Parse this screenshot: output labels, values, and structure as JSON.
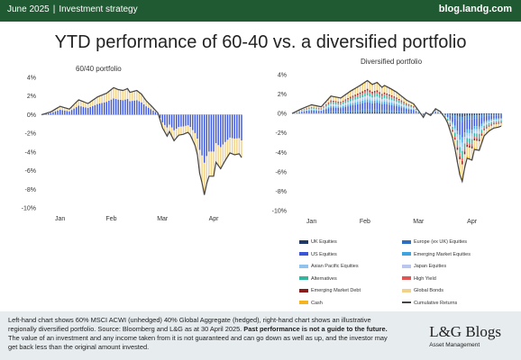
{
  "header": {
    "left": "June 2025",
    "separator": "|",
    "section": "Investment strategy",
    "site": "blog.landg.com"
  },
  "title": "YTD performance of 60-40 vs. a diversified portfolio",
  "colors": {
    "header_bg": "#1f5a32",
    "footer_bg": "#e7ecef"
  },
  "legend": [
    {
      "label": "UK Equities",
      "color": "#1f3a66",
      "type": "bar"
    },
    {
      "label": "Europe (ex UK) Equities",
      "color": "#2f6fc0",
      "type": "bar"
    },
    {
      "label": "US Equities",
      "color": "#3b55d8",
      "type": "bar"
    },
    {
      "label": "Emerging Market Equities",
      "color": "#3fa3e0",
      "type": "bar"
    },
    {
      "label": "Asian Pacific Equities",
      "color": "#8fc3ee",
      "type": "bar"
    },
    {
      "label": "Japan Equities",
      "color": "#b9c7ee",
      "type": "bar"
    },
    {
      "label": "Alternatives",
      "color": "#33b5a0",
      "type": "bar"
    },
    {
      "label": "High Yield",
      "color": "#e05555",
      "type": "bar"
    },
    {
      "label": "Emerging Market Debt",
      "color": "#8a1c1c",
      "type": "bar"
    },
    {
      "label": "Global Bonds",
      "color": "#f0d28a",
      "type": "bar"
    },
    {
      "label": "Cash",
      "color": "#f5b41e",
      "type": "bar"
    },
    {
      "label": "Cumulative Returns",
      "color": "#444444",
      "type": "line"
    }
  ],
  "chart_data": [
    {
      "type": "bar",
      "title": "60/40 portfolio",
      "x": [
        "Jan",
        "Feb",
        "Mar",
        "Apr"
      ],
      "ylim": [
        -10,
        4
      ],
      "yticks": [
        "4%",
        "2%",
        "0%",
        "-2%",
        "-4%",
        "-6%",
        "-8%",
        "-10%"
      ],
      "knots": [
        [
          0,
          0
        ],
        [
          4,
          0.3
        ],
        [
          8,
          0.9
        ],
        [
          12,
          0.6
        ],
        [
          16,
          1.6
        ],
        [
          20,
          1.2
        ],
        [
          24,
          1.9
        ],
        [
          28,
          2.3
        ],
        [
          31,
          2.9
        ],
        [
          33,
          2.7
        ],
        [
          35,
          2.6
        ],
        [
          37,
          2.8
        ],
        [
          38,
          2.4
        ],
        [
          41,
          2.6
        ],
        [
          43,
          2.2
        ],
        [
          45,
          1.5
        ],
        [
          47,
          1.0
        ],
        [
          50,
          0.2
        ],
        [
          52,
          -1.4
        ],
        [
          54,
          -2.3
        ],
        [
          55,
          -1.8
        ],
        [
          57,
          -2.8
        ],
        [
          59,
          -2.2
        ],
        [
          61,
          -2.1
        ],
        [
          63,
          -1.9
        ],
        [
          64,
          -2.2
        ],
        [
          66,
          -3.3
        ],
        [
          67,
          -4.3
        ],
        [
          68,
          -6.3
        ],
        [
          69,
          -7.3
        ],
        [
          70,
          -8.6
        ],
        [
          71,
          -7.4
        ],
        [
          72,
          -6.6
        ],
        [
          74,
          -6.6
        ],
        [
          75,
          -5.1
        ],
        [
          77,
          -5.8
        ],
        [
          79,
          -4.9
        ],
        [
          81,
          -4.1
        ],
        [
          83,
          -4.3
        ],
        [
          85,
          -4.2
        ],
        [
          86,
          -4.6
        ]
      ],
      "series": [
        {
          "name": "US Equities",
          "color": "#3b55d8",
          "share": 0.6
        },
        {
          "name": "Global Bonds",
          "color": "#f0d28a",
          "share": 0.4
        }
      ]
    },
    {
      "type": "bar",
      "title": "Diversified portfolio",
      "x": [
        "Jan",
        "Feb",
        "Mar",
        "Apr"
      ],
      "ylim": [
        -10,
        4
      ],
      "yticks": [
        "4%",
        "2%",
        "0%",
        "-2%",
        "-4%",
        "-6%",
        "-8%",
        "-10%"
      ],
      "knots": [
        [
          0,
          0
        ],
        [
          4,
          0.5
        ],
        [
          8,
          0.9
        ],
        [
          12,
          0.7
        ],
        [
          16,
          1.8
        ],
        [
          20,
          1.6
        ],
        [
          24,
          2.3
        ],
        [
          28,
          2.9
        ],
        [
          31,
          3.4
        ],
        [
          33,
          3.0
        ],
        [
          35,
          3.2
        ],
        [
          37,
          2.7
        ],
        [
          38,
          2.9
        ],
        [
          41,
          2.5
        ],
        [
          43,
          2.2
        ],
        [
          45,
          1.8
        ],
        [
          47,
          1.4
        ],
        [
          50,
          1.0
        ],
        [
          52,
          0.3
        ],
        [
          54,
          -0.4
        ],
        [
          55,
          0.1
        ],
        [
          57,
          -0.2
        ],
        [
          59,
          0.5
        ],
        [
          61,
          0.2
        ],
        [
          63,
          -0.5
        ],
        [
          64,
          -1.0
        ],
        [
          66,
          -2.5
        ],
        [
          67,
          -3.6
        ],
        [
          68,
          -5.0
        ],
        [
          69,
          -6.3
        ],
        [
          70,
          -7.0
        ],
        [
          71,
          -5.6
        ],
        [
          72,
          -4.6
        ],
        [
          74,
          -4.8
        ],
        [
          75,
          -3.7
        ],
        [
          77,
          -3.8
        ],
        [
          79,
          -2.3
        ],
        [
          81,
          -1.8
        ],
        [
          83,
          -1.5
        ],
        [
          85,
          -1.4
        ],
        [
          86,
          -1.3
        ]
      ],
      "series": [
        {
          "name": "UK Equities",
          "color": "#1f3a66",
          "share": 0.05
        },
        {
          "name": "Europe (ex UK) Equities",
          "color": "#2f6fc0",
          "share": 0.08
        },
        {
          "name": "US Equities",
          "color": "#3b55d8",
          "share": 0.22
        },
        {
          "name": "Emerging Market Equities",
          "color": "#3fa3e0",
          "share": 0.08
        },
        {
          "name": "Asian Pacific Equities",
          "color": "#8fc3ee",
          "share": 0.06
        },
        {
          "name": "Japan Equities",
          "color": "#b9c7ee",
          "share": 0.06
        },
        {
          "name": "Alternatives",
          "color": "#33b5a0",
          "share": 0.1
        },
        {
          "name": "High Yield",
          "color": "#e05555",
          "share": 0.05
        },
        {
          "name": "Emerging Market Debt",
          "color": "#8a1c1c",
          "share": 0.05
        },
        {
          "name": "Global Bonds",
          "color": "#f0d28a",
          "share": 0.2
        },
        {
          "name": "Cash",
          "color": "#f5b41e",
          "share": 0.05
        }
      ]
    }
  ],
  "footer": {
    "note": "Left-hand chart shows 60% MSCI ACWI (unhedged) 40% Global Aggregate (hedged), right-hand chart shows an illustrative regionally diversified portfolio. Source: Bloomberg and L&G as at 30 April 2025. ",
    "note_bold": "Past performance is not a guide to the future.",
    "note_tail": " The value of an investment and any income taken from it is not guaranteed and can go down as well as up, and the investor may get back less than the original amount invested.",
    "brand": "L&G Blogs",
    "brand_sub": "Asset Management"
  }
}
